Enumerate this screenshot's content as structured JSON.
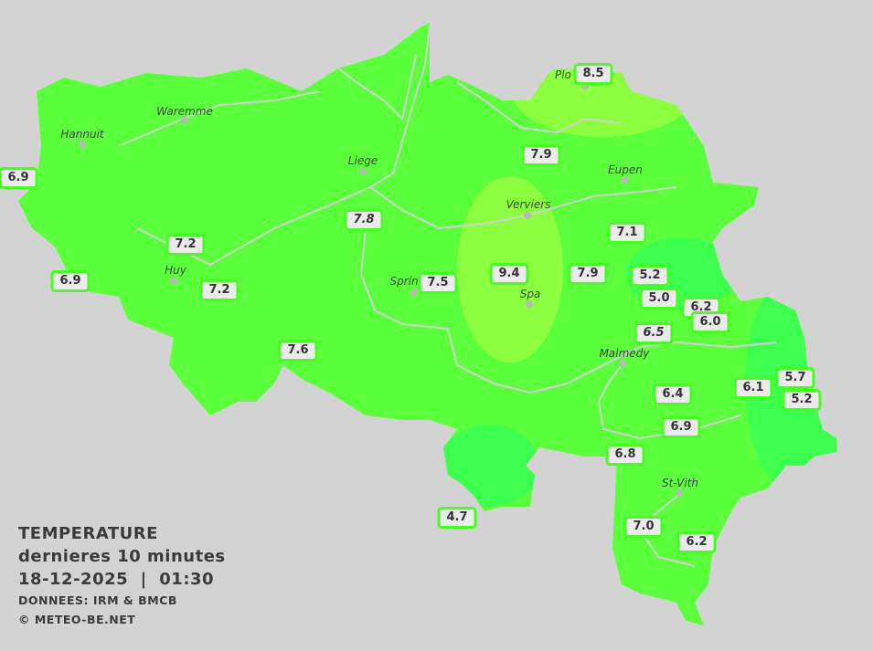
{
  "colors": {
    "background": "#d3d3d3",
    "zone_main": "#5cff3c",
    "zone_warm": "#8cff40",
    "zone_cool": "#3cff4e",
    "river": "#d0d0d0",
    "label_fill": "#ebebeb",
    "label_border": "#45ff22"
  },
  "legend": {
    "title": "TEMPERATURE",
    "subtitle": "dernieres 10 minutes",
    "datetime": "18-12-2025  |  01:30",
    "source": "DONNEES: IRM & BMCB",
    "copyright": "© METEO-BE.NET"
  },
  "cities": [
    "Hannuit",
    "Waremme",
    "Liege",
    "Eupen",
    "Verviers",
    "Spa",
    "Sprin",
    "Huy",
    "Malmedy",
    "St-Vith",
    "Plo"
  ],
  "stations": [
    "6.9",
    "8.5",
    "7.9",
    "7.8",
    "7.1",
    "7.2",
    "6.9",
    "7.2",
    "7.5",
    "9.4",
    "7.9",
    "5.2",
    "5.0",
    "6.2",
    "6.0",
    "6.5",
    "7.6",
    "6.1",
    "5.7",
    "5.2",
    "6.4",
    "6.9",
    "6.8",
    "4.7",
    "7.0",
    "6.2"
  ]
}
